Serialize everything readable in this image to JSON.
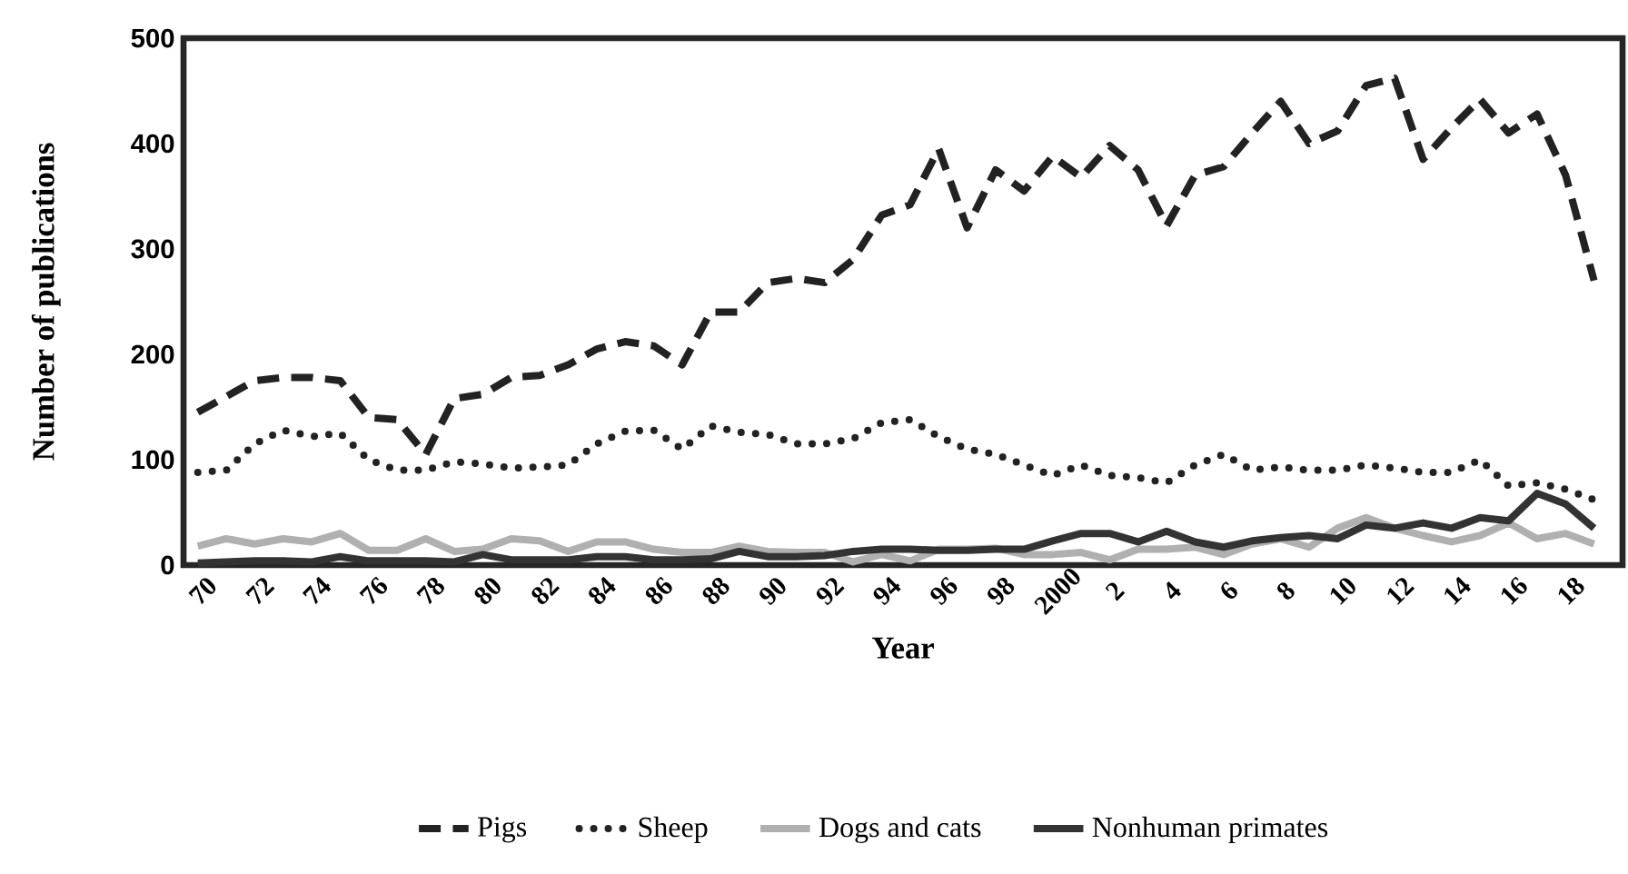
{
  "chart_data": {
    "type": "line",
    "xlabel": "Year",
    "ylabel": "Number of publications",
    "categories": [
      "70",
      null,
      "72",
      null,
      "74",
      null,
      "76",
      null,
      "78",
      null,
      "80",
      null,
      "82",
      null,
      "84",
      null,
      "86",
      null,
      "88",
      null,
      "90",
      null,
      "92",
      null,
      "94",
      null,
      "96",
      null,
      "98",
      null,
      "2000",
      null,
      "2",
      null,
      "4",
      null,
      "6",
      null,
      "8",
      null,
      "10",
      null,
      "12",
      null,
      "14",
      null,
      "16",
      null,
      "18",
      null
    ],
    "series": [
      {
        "name": "Pigs",
        "color": "#222222",
        "line_style": "dashed",
        "values": [
          145,
          160,
          175,
          178,
          178,
          175,
          140,
          138,
          105,
          158,
          162,
          178,
          180,
          190,
          205,
          212,
          208,
          190,
          240,
          240,
          268,
          272,
          268,
          290,
          332,
          342,
          395,
          320,
          375,
          355,
          388,
          368,
          398,
          375,
          322,
          370,
          378,
          410,
          440,
          400,
          412,
          455,
          462,
          385,
          415,
          442,
          410,
          428,
          370,
          270
        ]
      },
      {
        "name": "Sheep",
        "color": "#222222",
        "line_style": "dotted",
        "values": [
          88,
          90,
          115,
          128,
          122,
          125,
          100,
          90,
          90,
          98,
          96,
          92,
          93,
          95,
          115,
          127,
          128,
          110,
          132,
          126,
          124,
          115,
          115,
          120,
          135,
          138,
          122,
          110,
          105,
          95,
          85,
          95,
          85,
          83,
          78,
          95,
          105,
          90,
          93,
          90,
          90,
          95,
          92,
          88,
          88,
          100,
          75,
          78,
          72,
          62
        ]
      },
      {
        "name": "Dogs and cats",
        "color": "#b0b0b0",
        "line_style": "solid",
        "values": [
          18,
          25,
          20,
          25,
          22,
          30,
          14,
          14,
          25,
          13,
          15,
          25,
          23,
          13,
          22,
          22,
          15,
          12,
          12,
          18,
          13,
          12,
          12,
          3,
          10,
          4,
          15,
          15,
          16,
          10,
          10,
          12,
          5,
          15,
          15,
          17,
          10,
          20,
          25,
          17,
          35,
          45,
          35,
          28,
          22,
          28,
          40,
          25,
          30,
          20
        ]
      },
      {
        "name": "Nonhuman primates",
        "color": "#333333",
        "line_style": "solid",
        "values": [
          2,
          3,
          4,
          4,
          3,
          8,
          4,
          4,
          4,
          3,
          10,
          5,
          5,
          5,
          8,
          8,
          5,
          5,
          6,
          13,
          8,
          8,
          9,
          13,
          15,
          15,
          14,
          14,
          15,
          15,
          23,
          30,
          30,
          22,
          32,
          22,
          17,
          23,
          26,
          28,
          25,
          38,
          35,
          40,
          35,
          45,
          42,
          68,
          58,
          35
        ]
      }
    ],
    "ylim": [
      0,
      500
    ],
    "yticks": [
      0,
      100,
      200,
      300,
      400,
      500
    ],
    "legend": "bottom"
  }
}
